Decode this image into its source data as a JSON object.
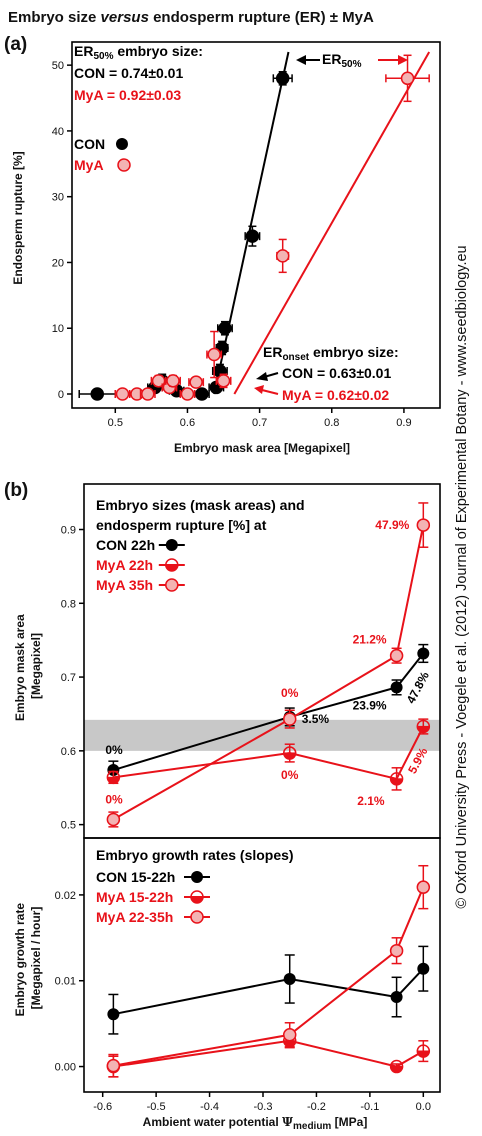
{
  "figure": {
    "title": "Embryo size versus endosperm rupture (ER) ± MyA",
    "title_parts": [
      "Embryo size ",
      "versus",
      " endosperm rupture (ER) ± MyA"
    ],
    "side_text": "© Oxford University Press - Voegele et al. (2012) Journal of Experimental Botany - www.seedbiology.eu"
  },
  "colors": {
    "con": "#000000",
    "mya": "#e8121a",
    "mya_fill": "#f3b3b3",
    "band": "#c8c8c8"
  },
  "panel_a": {
    "label": "(a)",
    "er50_title_pre": "ER",
    "er50_title_sub": "50%",
    "er50_title_post": " embryo size:",
    "er50_con": "CON = 0.74±0.01",
    "er50_mya": "MyA = 0.92±0.03",
    "er50_arrow_pre": "ER",
    "er50_arrow_sub": "50%",
    "eronset_title_pre": "ER",
    "eronset_title_sub": "onset",
    "eronset_title_post": " embryo size:",
    "eronset_con": "CON = 0.63±0.01",
    "eronset_mya": "MyA = 0.62±0.02",
    "legend": [
      {
        "label": "CON",
        "series": "CON"
      },
      {
        "label": "MyA",
        "series": "MyA"
      }
    ]
  },
  "panel_b": {
    "label": "(b)",
    "legend_top_line1": "Embryo sizes (mask areas) and",
    "legend_top_line2": "endosperm rupture [%] at",
    "legend_top": [
      "CON 22h",
      "MyA 22h",
      "MyA 35h"
    ],
    "legend_bottom_title": "Embryo growth rates (slopes)",
    "legend_bottom": [
      "CON 15-22h",
      "MyA 15-22h",
      "MyA 22-35h"
    ]
  },
  "chart_data": [
    {
      "type": "scatter",
      "panel": "a",
      "xlabel": "Embryo mask area [Megapixel]",
      "ylabel": "Endosperm rupture [%]",
      "xlim": [
        0.44,
        0.95
      ],
      "ylim": [
        0,
        52
      ],
      "xticks": [
        "0.5",
        "0.6",
        "0.7",
        "0.8",
        "0.9"
      ],
      "yticks": [
        "0",
        "10",
        "20",
        "30",
        "40",
        "50"
      ],
      "series": [
        {
          "name": "CON",
          "points": [
            {
              "x": 0.475,
              "y": 0,
              "xerr": 0.025,
              "yerr": 0
            },
            {
              "x": 0.555,
              "y": 1,
              "xerr": 0.01,
              "yerr": 0.5
            },
            {
              "x": 0.565,
              "y": 2,
              "xerr": 0.01,
              "yerr": 1
            },
            {
              "x": 0.57,
              "y": 1.5,
              "xerr": 0.01,
              "yerr": 0.5
            },
            {
              "x": 0.585,
              "y": 0.5,
              "xerr": 0.01,
              "yerr": 0.5
            },
            {
              "x": 0.62,
              "y": 0,
              "xerr": 0.01,
              "yerr": 0
            },
            {
              "x": 0.64,
              "y": 1,
              "xerr": 0.01,
              "yerr": 0.5
            },
            {
              "x": 0.645,
              "y": 3.5,
              "xerr": 0.01,
              "yerr": 1
            },
            {
              "x": 0.648,
              "y": 7,
              "xerr": 0.008,
              "yerr": 1
            },
            {
              "x": 0.652,
              "y": 10,
              "xerr": 0.01,
              "yerr": 1
            },
            {
              "x": 0.69,
              "y": 24,
              "xerr": 0.01,
              "yerr": 1.5
            },
            {
              "x": 0.732,
              "y": 48,
              "xerr": 0.013,
              "yerr": 1
            }
          ]
        },
        {
          "name": "MyA",
          "points": [
            {
              "x": 0.51,
              "y": 0,
              "xerr": 0.01,
              "yerr": 0
            },
            {
              "x": 0.53,
              "y": 0,
              "xerr": 0.01,
              "yerr": 0
            },
            {
              "x": 0.545,
              "y": 0,
              "xerr": 0.01,
              "yerr": 0
            },
            {
              "x": 0.56,
              "y": 2,
              "xerr": 0.01,
              "yerr": 0.8
            },
            {
              "x": 0.575,
              "y": 1,
              "xerr": 0.01,
              "yerr": 0.5
            },
            {
              "x": 0.58,
              "y": 2,
              "xerr": 0.01,
              "yerr": 0.8
            },
            {
              "x": 0.6,
              "y": 0,
              "xerr": 0.01,
              "yerr": 0
            },
            {
              "x": 0.612,
              "y": 1.8,
              "xerr": 0.01,
              "yerr": 0.6
            },
            {
              "x": 0.637,
              "y": 6,
              "xerr": 0.01,
              "yerr": 3.5
            },
            {
              "x": 0.65,
              "y": 2,
              "xerr": 0.01,
              "yerr": 1
            },
            {
              "x": 0.732,
              "y": 21,
              "xerr": 0.008,
              "yerr": 2.5
            },
            {
              "x": 0.905,
              "y": 48,
              "xerr": 0.03,
              "yerr": 3.5
            }
          ]
        }
      ],
      "fits": [
        {
          "name": "CON",
          "x": [
            0.637,
            0.74
          ],
          "y": [
            0,
            52
          ]
        },
        {
          "name": "MyA",
          "x": [
            0.665,
            0.935
          ],
          "y": [
            0,
            52
          ]
        }
      ]
    },
    {
      "type": "line",
      "panel": "b-top",
      "xlabel": "",
      "ylabel": "Embryo mask area [Megapixel]",
      "xlim": [
        -0.62,
        0.02
      ],
      "ylim": [
        0.49,
        0.94
      ],
      "yticks": [
        "0.5",
        "0.6",
        "0.7",
        "0.8",
        "0.9"
      ],
      "band": [
        0.6,
        0.642
      ],
      "series": [
        {
          "name": "CON 22h",
          "x": [
            -0.58,
            -0.25,
            -0.05,
            0.0
          ],
          "y": [
            0.574,
            0.646,
            0.686,
            0.732
          ],
          "err": [
            0.012,
            0.012,
            0.01,
            0.012
          ],
          "labels": [
            "0%",
            "3.5%",
            "23.9%",
            "47.8%"
          ]
        },
        {
          "name": "MyA 22h",
          "x": [
            -0.58,
            -0.25,
            -0.05,
            0.0
          ],
          "y": [
            0.564,
            0.597,
            0.562,
            0.633
          ],
          "err": [
            0.008,
            0.012,
            0.015,
            0.01
          ],
          "labels": [
            "0%",
            "0%",
            "2.1%",
            "5.9%"
          ]
        },
        {
          "name": "MyA 35h",
          "x": [
            -0.58,
            -0.25,
            -0.05,
            0.0
          ],
          "y": [
            0.507,
            0.643,
            0.729,
            0.906
          ],
          "err": [
            0.01,
            0.012,
            0.01,
            0.03
          ],
          "labels": [
            "0%",
            "0%",
            "21.2%",
            "47.9%"
          ]
        }
      ]
    },
    {
      "type": "line",
      "panel": "b-bottom",
      "xlabel": "Ambient water potential Ψmedium [MPa]",
      "xlabel_parts": [
        "Ambient water potential ",
        "Ψ",
        "medium",
        " [MPa]"
      ],
      "ylabel": "Embryo growth rate [Megapixel / hour]",
      "xlim": [
        -0.62,
        0.02
      ],
      "ylim": [
        -0.0025,
        0.025
      ],
      "xticks": [
        "-0.6",
        "-0.5",
        "-0.4",
        "-0.3",
        "-0.2",
        "-0.1",
        "0.0"
      ],
      "yticks": [
        "0.00",
        "0.01",
        "0.02"
      ],
      "series": [
        {
          "name": "CON 15-22h",
          "x": [
            -0.58,
            -0.25,
            -0.05,
            0.0
          ],
          "y": [
            0.0061,
            0.0102,
            0.0081,
            0.0114
          ],
          "err": [
            0.0023,
            0.0028,
            0.0023,
            0.0026
          ]
        },
        {
          "name": "MyA 15-22h",
          "x": [
            -0.58,
            -0.25,
            -0.05,
            0.0
          ],
          "y": [
            0.0,
            0.003,
            0.0,
            0.0018
          ],
          "err": [
            0.0012,
            0.0008,
            0.0003,
            0.0012
          ]
        },
        {
          "name": "MyA 22-35h",
          "x": [
            -0.58,
            -0.25,
            -0.05,
            0.0
          ],
          "y": [
            0.0001,
            0.0037,
            0.0135,
            0.0209
          ],
          "err": [
            0.0013,
            0.0014,
            0.0015,
            0.0025
          ]
        }
      ]
    }
  ]
}
